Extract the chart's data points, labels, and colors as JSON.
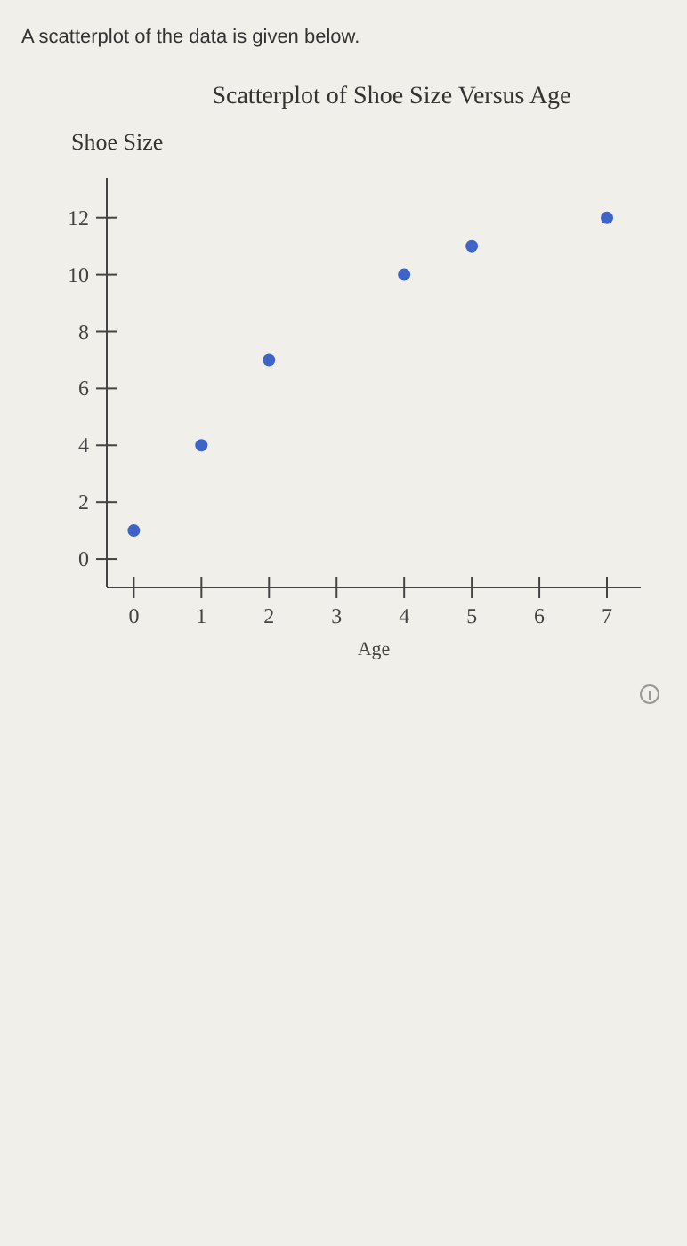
{
  "chart_data": {
    "type": "scatter",
    "title": "Scatterplot of Shoe Size Versus Age",
    "subtitle": "A scatterplot of the data is given below.",
    "xlabel": "Age",
    "ylabel": "Shoe Size",
    "x": [
      0,
      1,
      2,
      4,
      5,
      7
    ],
    "series": [
      {
        "color": "#3f64c8",
        "values": [
          1,
          4,
          7,
          10,
          11,
          12
        ]
      }
    ],
    "xlim": [
      -0.4,
      7.5
    ],
    "ylim": [
      -1,
      13.4
    ],
    "xticks": [
      0,
      1,
      2,
      3,
      4,
      5,
      6,
      7
    ],
    "yticks": [
      0,
      2,
      4,
      6,
      8,
      10,
      12
    ],
    "marker": "circle",
    "grid": false
  }
}
